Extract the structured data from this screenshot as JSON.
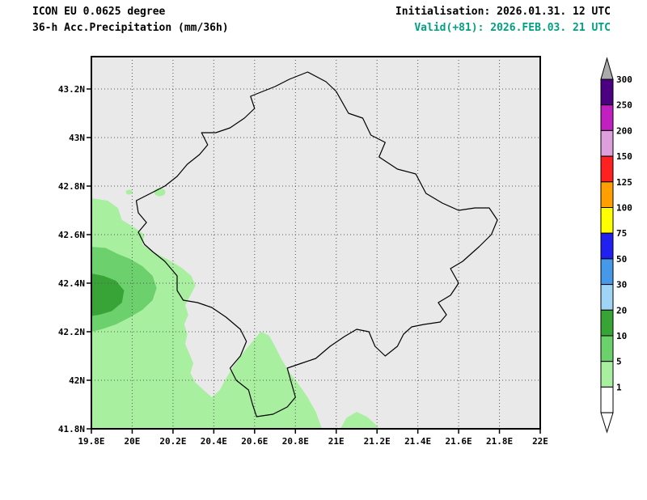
{
  "header": {
    "model_title": "ICON EU 0.0625 degree",
    "product_title": "36-h Acc.Precipitation (mm/36h)",
    "init_text": "Initialisation: 2026.01.31. 12 UTC",
    "valid_text": "Valid(+81): 2026.FEB.03. 21 UTC",
    "valid_color": "#00A080"
  },
  "chart_data": {
    "type": "map-filled-contour",
    "title": "ICON EU 0.0625 degree 36-h Acc.Precipitation (mm/36h)",
    "units": "mm/36h",
    "extent": {
      "lon_min": 19.8,
      "lon_max": 22.0,
      "lat_min": 41.8,
      "lat_max": 43.33
    },
    "axes": {
      "grid": "dotted",
      "x_ticks": [
        {
          "lon": 19.8,
          "label": "19.8E"
        },
        {
          "lon": 20.0,
          "label": "20E"
        },
        {
          "lon": 20.2,
          "label": "20.2E"
        },
        {
          "lon": 20.4,
          "label": "20.4E"
        },
        {
          "lon": 20.6,
          "label": "20.6E"
        },
        {
          "lon": 20.8,
          "label": "20.8E"
        },
        {
          "lon": 21.0,
          "label": "21E"
        },
        {
          "lon": 21.2,
          "label": "21.2E"
        },
        {
          "lon": 21.4,
          "label": "21.4E"
        },
        {
          "lon": 21.6,
          "label": "21.6E"
        },
        {
          "lon": 21.8,
          "label": "21.8E"
        },
        {
          "lon": 22.0,
          "label": "22E"
        }
      ],
      "y_ticks": [
        {
          "lat": 41.8,
          "label": "41.8N"
        },
        {
          "lat": 42.0,
          "label": "42N"
        },
        {
          "lat": 42.2,
          "label": "42.2N"
        },
        {
          "lat": 42.4,
          "label": "42.4N"
        },
        {
          "lat": 42.6,
          "label": "42.6N"
        },
        {
          "lat": 42.8,
          "label": "42.8N"
        },
        {
          "lat": 43.0,
          "label": "43N"
        },
        {
          "lat": 43.2,
          "label": "43.2N"
        }
      ]
    },
    "legend": {
      "position": "right",
      "levels": [
        1,
        5,
        10,
        20,
        30,
        50,
        75,
        100,
        125,
        150,
        200,
        250,
        300
      ],
      "band_colors": [
        "#FFFFFF",
        "#A8F0A0",
        "#6CD06C",
        "#38A438",
        "#9FD4F5",
        "#4699E8",
        "#2020F0",
        "#FFFF00",
        "#FFA000",
        "#FF2020",
        "#DDA0DD",
        "#C020C0",
        "#4B0082"
      ],
      "over_color": "#ABABAB"
    },
    "map": {
      "background": "#E9E9E9",
      "border_color": "#000000",
      "kosovo_border": [
        [
          20.86,
          43.27
        ],
        [
          20.95,
          43.23
        ],
        [
          21.0,
          43.19
        ],
        [
          21.06,
          43.1
        ],
        [
          21.13,
          43.08
        ],
        [
          21.17,
          43.01
        ],
        [
          21.24,
          42.98
        ],
        [
          21.21,
          42.92
        ],
        [
          21.3,
          42.87
        ],
        [
          21.39,
          42.85
        ],
        [
          21.44,
          42.77
        ],
        [
          21.52,
          42.73
        ],
        [
          21.6,
          42.7
        ],
        [
          21.68,
          42.71
        ],
        [
          21.75,
          42.71
        ],
        [
          21.79,
          42.66
        ],
        [
          21.76,
          42.6
        ],
        [
          21.7,
          42.55
        ],
        [
          21.62,
          42.49
        ],
        [
          21.56,
          42.46
        ],
        [
          21.6,
          42.4
        ],
        [
          21.56,
          42.35
        ],
        [
          21.5,
          42.32
        ],
        [
          21.54,
          42.27
        ],
        [
          21.51,
          42.24
        ],
        [
          21.43,
          42.23
        ],
        [
          21.37,
          42.22
        ],
        [
          21.33,
          42.19
        ],
        [
          21.3,
          42.14
        ],
        [
          21.24,
          42.1
        ],
        [
          21.19,
          42.14
        ],
        [
          21.16,
          42.2
        ],
        [
          21.1,
          42.21
        ],
        [
          21.04,
          42.18
        ],
        [
          20.97,
          42.14
        ],
        [
          20.9,
          42.09
        ],
        [
          20.83,
          42.07
        ],
        [
          20.76,
          42.05
        ],
        [
          20.78,
          41.99
        ],
        [
          20.8,
          41.93
        ],
        [
          20.76,
          41.89
        ],
        [
          20.69,
          41.86
        ],
        [
          20.61,
          41.85
        ],
        [
          20.59,
          41.9
        ],
        [
          20.57,
          41.96
        ],
        [
          20.51,
          42.0
        ],
        [
          20.48,
          42.05
        ],
        [
          20.53,
          42.1
        ],
        [
          20.56,
          42.16
        ],
        [
          20.53,
          42.21
        ],
        [
          20.46,
          42.26
        ],
        [
          20.39,
          42.3
        ],
        [
          20.32,
          42.32
        ],
        [
          20.25,
          42.33
        ],
        [
          20.22,
          42.37
        ],
        [
          20.22,
          42.43
        ],
        [
          20.16,
          42.49
        ],
        [
          20.1,
          42.53
        ],
        [
          20.06,
          42.56
        ],
        [
          20.03,
          42.61
        ],
        [
          20.07,
          42.65
        ],
        [
          20.03,
          42.69
        ],
        [
          20.02,
          42.74
        ],
        [
          20.09,
          42.77
        ],
        [
          20.16,
          42.8
        ],
        [
          20.22,
          42.84
        ],
        [
          20.27,
          42.89
        ],
        [
          20.33,
          42.93
        ],
        [
          20.37,
          42.97
        ],
        [
          20.34,
          43.02
        ],
        [
          20.41,
          43.02
        ],
        [
          20.48,
          43.04
        ],
        [
          20.55,
          43.08
        ],
        [
          20.6,
          43.12
        ],
        [
          20.58,
          43.17
        ],
        [
          20.64,
          43.19
        ],
        [
          20.7,
          43.21
        ],
        [
          20.77,
          43.24
        ]
      ],
      "precip_areas": [
        {
          "band": "1-5",
          "color": "#A8F0A0",
          "name": "west-region",
          "polygon": [
            [
              19.8,
              42.75
            ],
            [
              19.88,
              42.74
            ],
            [
              19.93,
              42.71
            ],
            [
              19.95,
              42.66
            ],
            [
              20.01,
              42.63
            ],
            [
              20.06,
              42.6
            ],
            [
              20.05,
              42.56
            ],
            [
              20.1,
              42.53
            ],
            [
              20.17,
              42.5
            ],
            [
              20.24,
              42.465
            ],
            [
              20.29,
              42.43
            ],
            [
              20.31,
              42.39
            ],
            [
              20.285,
              42.35
            ],
            [
              20.26,
              42.31
            ],
            [
              20.275,
              42.27
            ],
            [
              20.255,
              42.23
            ],
            [
              20.27,
              42.19
            ],
            [
              20.26,
              42.15
            ],
            [
              20.28,
              42.11
            ],
            [
              20.3,
              42.07
            ],
            [
              20.285,
              42.03
            ],
            [
              20.31,
              41.99
            ],
            [
              20.35,
              41.96
            ],
            [
              20.39,
              41.93
            ],
            [
              20.43,
              41.96
            ],
            [
              20.455,
              42.0
            ],
            [
              20.49,
              42.05
            ],
            [
              20.54,
              42.11
            ],
            [
              20.59,
              42.16
            ],
            [
              20.63,
              42.2
            ],
            [
              20.67,
              42.185
            ],
            [
              20.7,
              42.14
            ],
            [
              20.73,
              42.09
            ],
            [
              20.765,
              42.04
            ],
            [
              20.81,
              41.99
            ],
            [
              20.86,
              41.93
            ],
            [
              20.9,
              41.87
            ],
            [
              20.93,
              41.8
            ],
            [
              19.8,
              41.8
            ]
          ]
        },
        {
          "band": "1-5",
          "color": "#A8F0A0",
          "name": "south-sliver",
          "polygon": [
            [
              21.02,
              41.8
            ],
            [
              21.05,
              41.845
            ],
            [
              21.1,
              41.87
            ],
            [
              21.15,
              41.85
            ],
            [
              21.19,
              41.82
            ],
            [
              21.21,
              41.8
            ]
          ]
        },
        {
          "band": "5-10",
          "color": "#6CD06C",
          "name": "west-region-5-10",
          "polygon": [
            [
              19.8,
              42.55
            ],
            [
              19.87,
              42.545
            ],
            [
              19.93,
              42.52
            ],
            [
              19.99,
              42.5
            ],
            [
              20.05,
              42.47
            ],
            [
              20.1,
              42.43
            ],
            [
              20.12,
              42.38
            ],
            [
              20.1,
              42.33
            ],
            [
              20.05,
              42.29
            ],
            [
              19.99,
              42.26
            ],
            [
              19.92,
              42.23
            ],
            [
              19.85,
              42.21
            ],
            [
              19.8,
              42.2
            ]
          ]
        },
        {
          "band": "10-20",
          "color": "#38A438",
          "name": "west-region-10-20",
          "polygon": [
            [
              19.8,
              42.44
            ],
            [
              19.86,
              42.43
            ],
            [
              19.92,
              42.41
            ],
            [
              19.96,
              42.37
            ],
            [
              19.95,
              42.32
            ],
            [
              19.9,
              42.285
            ],
            [
              19.84,
              42.27
            ],
            [
              19.8,
              42.265
            ]
          ]
        },
        {
          "band": "1-5",
          "color": "#A8F0A0",
          "name": "nw-spot-1",
          "ellipse": {
            "lon": 20.135,
            "lat": 42.775,
            "rx": 7,
            "ry": 5
          }
        },
        {
          "band": "1-5",
          "color": "#A8F0A0",
          "name": "nw-spot-2",
          "ellipse": {
            "lon": 19.985,
            "lat": 42.775,
            "rx": 4,
            "ry": 3
          }
        }
      ]
    }
  }
}
